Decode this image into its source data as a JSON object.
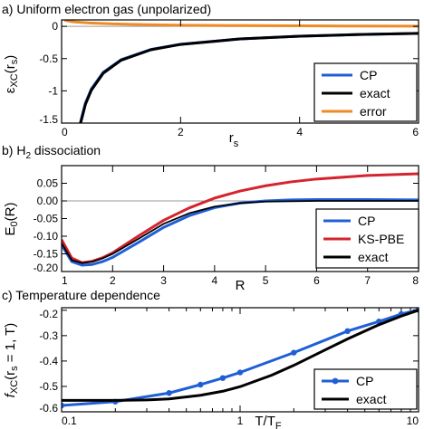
{
  "chart_data": [
    {
      "type": "line",
      "title": "a) Uniform electron gas (unpolarized)",
      "ylabel": "εXC(rs)",
      "xlabel": "rs",
      "xlim": [
        0,
        6
      ],
      "ylim": [
        -1.5,
        0.1
      ],
      "xticks": [
        0,
        2,
        4,
        6
      ],
      "yticks": [
        0,
        -0.5,
        -1,
        -1.5
      ],
      "ytick_labels": [
        "0",
        "-0.5",
        "-1",
        "-1.5"
      ],
      "zero_line": true,
      "legend_position": "bottom-right",
      "series": [
        {
          "name": "CP",
          "color": "#1f5fd6",
          "x": [
            0.3,
            0.4,
            0.5,
            0.7,
            1.0,
            1.5,
            2.0,
            3.0,
            4.0,
            5.0,
            6.0
          ],
          "y": [
            -1.55,
            -1.19,
            -0.97,
            -0.712,
            -0.517,
            -0.358,
            -0.277,
            -0.194,
            -0.152,
            -0.126,
            -0.108
          ]
        },
        {
          "name": "exact",
          "color": "#000000",
          "x": [
            0.3,
            0.4,
            0.5,
            0.7,
            1.0,
            1.5,
            2.0,
            3.0,
            4.0,
            5.0,
            6.0
          ],
          "y": [
            -1.57,
            -1.21,
            -0.99,
            -0.726,
            -0.525,
            -0.363,
            -0.28,
            -0.195,
            -0.153,
            -0.127,
            -0.109
          ]
        },
        {
          "name": "error",
          "color": "#ef8a24",
          "x": [
            0.05,
            0.2,
            0.5,
            1.0,
            1.5,
            2.0,
            3.0,
            4.0,
            5.0,
            6.0
          ],
          "y": [
            0.095,
            0.07,
            0.05,
            0.035,
            0.025,
            0.018,
            0.012,
            0.008,
            0.005,
            0.004
          ]
        }
      ]
    },
    {
      "type": "line",
      "title": "b) H2 dissociation",
      "ylabel": "E0(R)",
      "xlabel": "R",
      "xlim": [
        1,
        8
      ],
      "ylim": [
        -0.2,
        0.1
      ],
      "xticks": [
        1,
        2,
        3,
        4,
        5,
        6,
        7,
        8
      ],
      "yticks": [
        0.05,
        0,
        -0.05,
        -0.1,
        -0.15,
        -0.2
      ],
      "ytick_labels": [
        "0.05",
        "0.00",
        "-0.05",
        "-0.10",
        "-0.15",
        "-0.20"
      ],
      "zero_line": true,
      "legend_position": "bottom-right",
      "series": [
        {
          "name": "CP",
          "color": "#1f5fd6",
          "x": [
            1.0,
            1.2,
            1.4,
            1.6,
            1.8,
            2.0,
            2.5,
            3.0,
            3.5,
            4.0,
            4.5,
            5.0,
            5.5,
            6.0,
            7.0,
            8.0
          ],
          "y": [
            -0.125,
            -0.172,
            -0.182,
            -0.18,
            -0.172,
            -0.16,
            -0.118,
            -0.075,
            -0.042,
            -0.019,
            -0.006,
            0.0,
            0.003,
            0.004,
            0.004,
            0.003
          ]
        },
        {
          "name": "KS-PBE",
          "color": "#d4242e",
          "x": [
            1.0,
            1.2,
            1.4,
            1.6,
            1.8,
            2.0,
            2.5,
            3.0,
            3.5,
            4.0,
            4.5,
            5.0,
            5.5,
            6.0,
            7.0,
            8.0
          ],
          "y": [
            -0.11,
            -0.162,
            -0.175,
            -0.171,
            -0.161,
            -0.147,
            -0.1,
            -0.055,
            -0.02,
            0.008,
            0.028,
            0.043,
            0.054,
            0.062,
            0.072,
            0.077
          ]
        },
        {
          "name": "exact",
          "color": "#000000",
          "x": [
            1.0,
            1.2,
            1.4,
            1.6,
            1.8,
            2.0,
            2.5,
            3.0,
            3.5,
            4.0,
            4.5,
            5.0,
            5.5,
            6.0,
            7.0,
            8.0
          ],
          "y": [
            -0.12,
            -0.168,
            -0.176,
            -0.172,
            -0.163,
            -0.15,
            -0.108,
            -0.065,
            -0.035,
            -0.016,
            -0.006,
            -0.002,
            -0.001,
            0.0,
            0.0,
            0.0
          ]
        }
      ]
    },
    {
      "type": "line",
      "title": "c) Temperature dependence",
      "ylabel": "fXC(rs = 1, T)",
      "xlabel": "T/TF",
      "xscale": "log",
      "xlim": [
        0.1,
        10
      ],
      "ylim": [
        -0.6,
        -0.19
      ],
      "xticks": [
        0.1,
        1,
        10
      ],
      "xtick_labels": [
        "0.1",
        "1",
        "10"
      ],
      "yticks": [
        -0.2,
        -0.3,
        -0.4,
        -0.5,
        -0.6
      ],
      "ytick_labels": [
        "-0.2",
        "-0.3",
        "-0.4",
        "-0.5",
        "-0.6"
      ],
      "legend_position": "bottom-right",
      "series": [
        {
          "name": "CP",
          "color": "#1f5fd6",
          "markers": true,
          "x": [
            0.1,
            0.2,
            0.4,
            0.6,
            0.8,
            1.0,
            2.0,
            4.0,
            6.0,
            8.0,
            10.0
          ],
          "y": [
            -0.575,
            -0.56,
            -0.526,
            -0.493,
            -0.467,
            -0.445,
            -0.367,
            -0.282,
            -0.244,
            -0.215,
            -0.198
          ]
        },
        {
          "name": "exact",
          "color": "#000000",
          "x": [
            0.1,
            0.2,
            0.3,
            0.4,
            0.6,
            0.8,
            1.0,
            1.5,
            2.0,
            3.0,
            4.0,
            6.0,
            8.0,
            10.0
          ],
          "y": [
            -0.555,
            -0.555,
            -0.553,
            -0.549,
            -0.535,
            -0.519,
            -0.501,
            -0.456,
            -0.417,
            -0.356,
            -0.313,
            -0.257,
            -0.223,
            -0.2
          ]
        }
      ]
    }
  ]
}
